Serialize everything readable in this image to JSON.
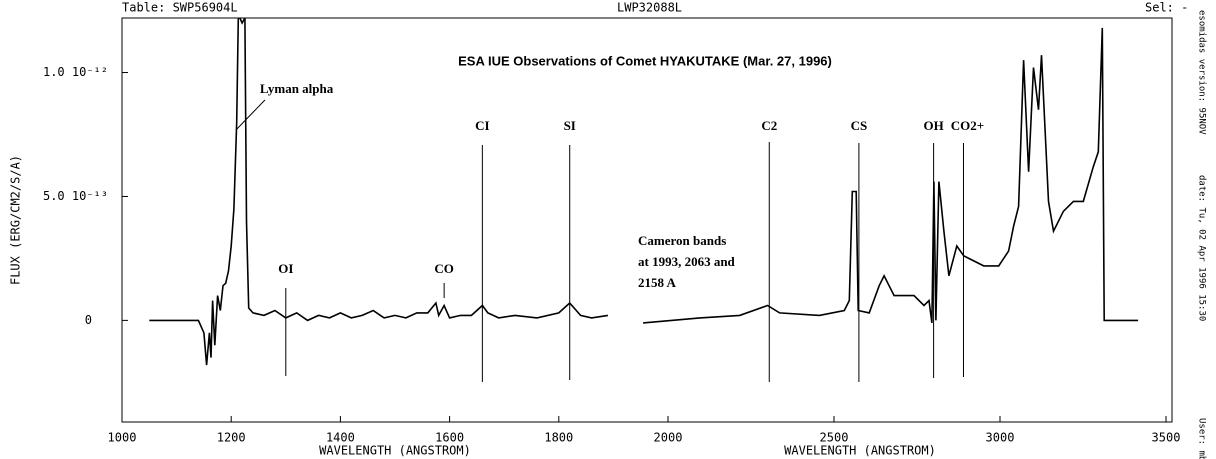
{
  "header": {
    "table": "Table: SWP56904L",
    "second": "LWP32088L",
    "sel": "Sel: -"
  },
  "side": {
    "version": "esomidas version: 95NOV",
    "date": "date: Tu, 02 Apr 1996 15:30",
    "user": "User: mb"
  },
  "chart_data": [
    {
      "type": "line",
      "title": "ESA IUE Observations of Comet HYAKUTAKE (Mar. 27, 1996)",
      "ylabel": "FLUX (ERG/CM2/S/A)",
      "xlabel": "WAVELENGTH (ANGSTROM)",
      "color": "#000000",
      "xlim": [
        1000,
        2000
      ],
      "xticks": [
        1000,
        1200,
        1400,
        1600,
        1800
      ],
      "ylim": [
        -4.1e-13,
        1.22e-12
      ],
      "yticks": [
        0,
        {
          "value": 5e-13,
          "label": "5.0 10⁻¹³"
        },
        {
          "value": 1e-12,
          "label": "1.0 10⁻¹²"
        }
      ],
      "x": [
        1050,
        1140,
        1150,
        1155,
        1160,
        1163,
        1166,
        1170,
        1175,
        1180,
        1185,
        1190,
        1195,
        1200,
        1205,
        1210,
        1213,
        1216,
        1220,
        1225,
        1228,
        1232,
        1240,
        1260,
        1280,
        1300,
        1320,
        1340,
        1360,
        1380,
        1400,
        1420,
        1440,
        1460,
        1480,
        1500,
        1520,
        1540,
        1560,
        1575,
        1580,
        1590,
        1600,
        1620,
        1640,
        1660,
        1670,
        1690,
        1720,
        1760,
        1800,
        1820,
        1840,
        1860,
        1890
      ],
      "values": [
        0,
        0,
        -5e-14,
        -1.8e-13,
        -5e-14,
        -1.5e-13,
        8e-14,
        -1e-13,
        1e-13,
        4e-14,
        1.4e-13,
        1.5e-13,
        2e-13,
        3e-13,
        4.5e-13,
        8e-13,
        1.22e-12,
        1.22e-12,
        1.2e-12,
        1.22e-12,
        4e-13,
        5e-14,
        3e-14,
        2e-14,
        4e-14,
        1e-14,
        3e-14,
        0,
        2e-14,
        1e-14,
        3e-14,
        1e-14,
        2e-14,
        4e-14,
        1e-14,
        2e-14,
        1e-14,
        3e-14,
        3e-14,
        7e-14,
        2e-14,
        6e-14,
        1e-14,
        2e-14,
        2e-14,
        6e-14,
        3e-14,
        1e-14,
        2e-14,
        1e-14,
        3e-14,
        7e-14,
        2e-14,
        1e-14,
        2e-14
      ],
      "annotations": [
        {
          "text": "Lyman alpha",
          "x": 1216
        },
        {
          "text": "OI",
          "x": 1300
        },
        {
          "text": "CO",
          "x": 1590
        },
        {
          "text": "CI",
          "x": 1660
        },
        {
          "text": "SI",
          "x": 1820
        }
      ]
    },
    {
      "type": "line",
      "xlabel": "WAVELENGTH (ANGSTROM)",
      "color": "#000000",
      "xlim": [
        2000,
        3500
      ],
      "xticks": [
        2000,
        2500,
        3000,
        3500
      ],
      "ylim": [
        -4.1e-13,
        1.22e-12
      ],
      "x": [
        1925,
        2096,
        2216,
        2300,
        2336,
        2456,
        2531,
        2546,
        2555,
        2567,
        2573,
        2606,
        2636,
        2651,
        2681,
        2741,
        2771,
        2786,
        2795,
        2801,
        2807,
        2816,
        2831,
        2846,
        2870,
        2891,
        2951,
        2996,
        3026,
        3041,
        3056,
        3071,
        3086,
        3101,
        3116,
        3125,
        3146,
        3161,
        3191,
        3221,
        3251,
        3281,
        3296,
        3308,
        3314,
        3416
      ],
      "values": [
        -1e-14,
        1e-14,
        2e-14,
        6e-14,
        3e-14,
        2e-14,
        4e-14,
        8e-14,
        5.2e-13,
        5.2e-13,
        4e-14,
        3e-14,
        1.4e-13,
        1.8e-13,
        1e-13,
        1e-13,
        6e-14,
        8e-14,
        -1e-14,
        5.6e-13,
        0,
        5.6e-13,
        3.6e-13,
        1.8e-13,
        3e-13,
        2.6e-13,
        2.2e-13,
        2.2e-13,
        2.8e-13,
        3.8e-13,
        4.6e-13,
        1.05e-12,
        6e-13,
        1.02e-12,
        8.5e-13,
        1.07e-12,
        4.8e-13,
        3.6e-13,
        4.4e-13,
        4.8e-13,
        4.8e-13,
        6.2e-13,
        6.8e-13,
        1.18e-12,
        0,
        0
      ],
      "annotations": [
        {
          "text": "C2",
          "x": 2305
        },
        {
          "text": "CS",
          "x": 2575
        },
        {
          "text": "OH",
          "x": 2800
        },
        {
          "text": "CO2+",
          "x": 2890
        },
        {
          "lines": [
            "Cameron bands",
            " at 1993, 2063 and",
            "2158 A"
          ]
        }
      ]
    }
  ]
}
